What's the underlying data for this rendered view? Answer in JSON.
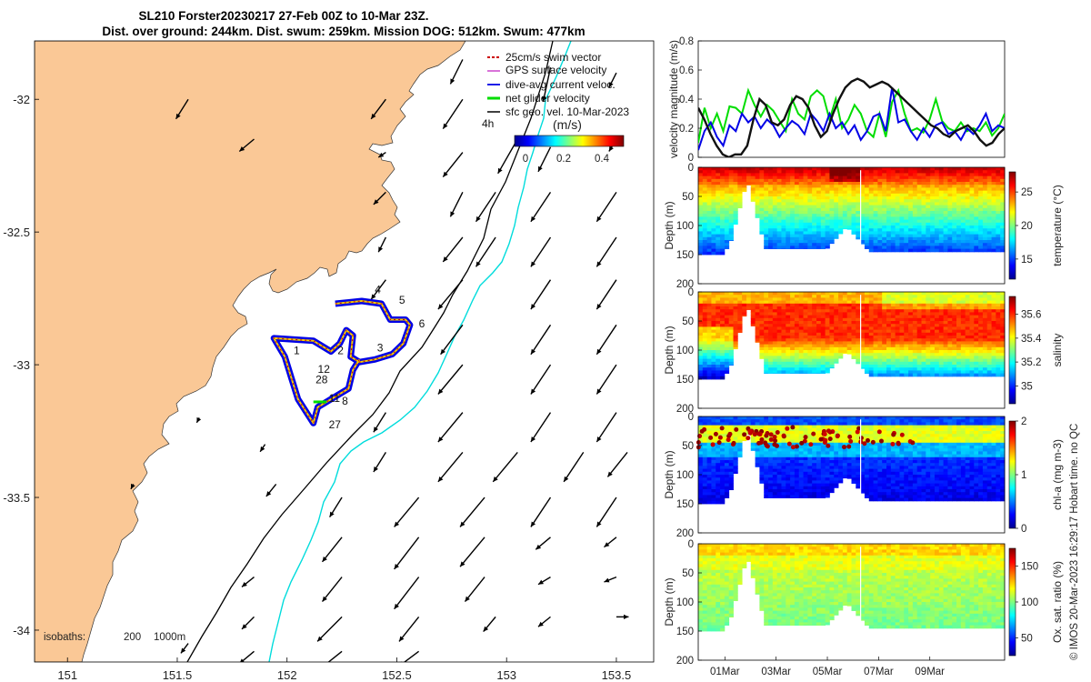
{
  "title_line1": "SL210 Forster20230217 27-Feb 00Z to 10-Mar 23Z.",
  "title_line2": "Dist. over ground: 244km. Dist. swum: 259km. Mission DOG: 512km. Swum: 477km",
  "credit": "© IMOS 20-Mar-2023 16:29:17 Hobart time. no QC",
  "colors": {
    "land": "#fac896",
    "isobath200": "#000000",
    "isobath1000": "#00dcdc",
    "track": "#0000e6",
    "swim": "#cc0000",
    "net": "#00dd00"
  },
  "chart_data": [
    {
      "type": "scatter",
      "name": "map",
      "xlim": [
        150.85,
        153.67
      ],
      "ylim": [
        -34.12,
        -31.78
      ],
      "x_ticks": [
        "151",
        "151.5",
        "152",
        "152.5",
        "153",
        "153.5"
      ],
      "y_ticks": [
        "-32",
        "-32.5",
        "-33",
        "-33.5",
        "-34"
      ],
      "legend": {
        "placement": "top-right",
        "items": [
          "25cm/s swim vector",
          "GPS surface velocity",
          "dive-avg current veloc.",
          "net glider velocity",
          "sfc geo. vel. 10-Mar-2023"
        ]
      },
      "scale_label": "4h",
      "colorbar": {
        "label": "(m/s)",
        "ticks": [
          "0",
          "0.2",
          "0.4"
        ],
        "range": [
          0,
          0.5
        ]
      },
      "isobath_label": "isobaths:",
      "isobath_values": [
        "200",
        "1000m"
      ],
      "waypoints": [
        {
          "label": "1",
          "lon": 152.03,
          "lat": -32.96
        },
        {
          "label": "2",
          "lon": 152.23,
          "lat": -32.96
        },
        {
          "label": "3",
          "lon": 152.41,
          "lat": -32.95
        },
        {
          "label": "4",
          "lon": 152.4,
          "lat": -32.73
        },
        {
          "label": "5",
          "lon": 152.51,
          "lat": -32.77
        },
        {
          "label": "6",
          "lon": 152.6,
          "lat": -32.86
        },
        {
          "label": "12",
          "lon": 152.14,
          "lat": -33.03
        },
        {
          "label": "28",
          "lon": 152.13,
          "lat": -33.07
        },
        {
          "label": "11",
          "lon": 152.19,
          "lat": -33.14
        },
        {
          "label": "8",
          "lon": 152.25,
          "lat": -33.15
        },
        {
          "label": "27",
          "lon": 152.19,
          "lat": -33.24
        }
      ],
      "track_lonlat": [
        [
          152.22,
          -32.77
        ],
        [
          152.34,
          -32.76
        ],
        [
          152.43,
          -32.77
        ],
        [
          152.47,
          -32.83
        ],
        [
          152.54,
          -32.83
        ],
        [
          152.56,
          -32.85
        ],
        [
          152.53,
          -32.92
        ],
        [
          152.48,
          -32.96
        ],
        [
          152.4,
          -32.98
        ],
        [
          152.33,
          -32.99
        ],
        [
          152.29,
          -32.97
        ],
        [
          152.3,
          -32.89
        ],
        [
          152.27,
          -32.87
        ],
        [
          152.24,
          -32.92
        ],
        [
          152.2,
          -32.95
        ],
        [
          152.12,
          -32.91
        ],
        [
          151.94,
          -32.9
        ],
        [
          151.99,
          -32.97
        ],
        [
          152.02,
          -33.05
        ],
        [
          152.05,
          -33.13
        ],
        [
          152.12,
          -33.22
        ],
        [
          152.14,
          -33.16
        ],
        [
          152.28,
          -33.09
        ],
        [
          152.3,
          -33.02
        ],
        [
          152.33,
          -32.98
        ]
      ],
      "surface_vectors": [
        {
          "lon": 151.55,
          "lat": -32.0,
          "u": -0.05,
          "v": -0.08
        },
        {
          "lon": 151.85,
          "lat": -32.15,
          "u": -0.06,
          "v": -0.05
        },
        {
          "lon": 152.8,
          "lat": -31.85,
          "u": -0.05,
          "v": -0.1
        },
        {
          "lon": 153.2,
          "lat": -31.88,
          "u": -0.03,
          "v": -0.14
        },
        {
          "lon": 153.5,
          "lat": -31.9,
          "u": -0.03,
          "v": -0.06
        },
        {
          "lon": 152.45,
          "lat": -32.0,
          "u": -0.06,
          "v": -0.08
        },
        {
          "lon": 152.8,
          "lat": -32.0,
          "u": -0.08,
          "v": -0.12
        },
        {
          "lon": 152.45,
          "lat": -32.2,
          "u": -0.03,
          "v": -0.02
        },
        {
          "lon": 152.8,
          "lat": -32.2,
          "u": -0.08,
          "v": -0.1
        },
        {
          "lon": 153.05,
          "lat": -32.15,
          "u": -0.08,
          "v": -0.14
        },
        {
          "lon": 153.2,
          "lat": -32.18,
          "u": -0.05,
          "v": -0.1
        },
        {
          "lon": 153.5,
          "lat": -32.15,
          "u": -0.03,
          "v": -0.05
        },
        {
          "lon": 152.45,
          "lat": -32.35,
          "u": -0.05,
          "v": -0.05
        },
        {
          "lon": 152.8,
          "lat": -32.35,
          "u": -0.05,
          "v": -0.1
        },
        {
          "lon": 152.95,
          "lat": -32.35,
          "u": -0.08,
          "v": -0.12
        },
        {
          "lon": 153.2,
          "lat": -32.35,
          "u": -0.08,
          "v": -0.12
        },
        {
          "lon": 153.5,
          "lat": -32.35,
          "u": -0.08,
          "v": -0.12
        },
        {
          "lon": 152.45,
          "lat": -32.52,
          "u": -0.03,
          "v": -0.06
        },
        {
          "lon": 152.8,
          "lat": -32.52,
          "u": -0.08,
          "v": -0.1
        },
        {
          "lon": 152.95,
          "lat": -32.52,
          "u": -0.08,
          "v": -0.12
        },
        {
          "lon": 153.2,
          "lat": -32.52,
          "u": -0.08,
          "v": -0.12
        },
        {
          "lon": 153.5,
          "lat": -32.52,
          "u": -0.08,
          "v": -0.12
        },
        {
          "lon": 152.45,
          "lat": -32.68,
          "u": -0.06,
          "v": -0.08
        },
        {
          "lon": 152.8,
          "lat": -32.68,
          "u": -0.1,
          "v": -0.12
        },
        {
          "lon": 153.2,
          "lat": -32.68,
          "u": -0.08,
          "v": -0.12
        },
        {
          "lon": 153.5,
          "lat": -32.68,
          "u": -0.08,
          "v": -0.12
        },
        {
          "lon": 152.8,
          "lat": -32.85,
          "u": -0.09,
          "v": -0.12
        },
        {
          "lon": 153.2,
          "lat": -32.85,
          "u": -0.08,
          "v": -0.12
        },
        {
          "lon": 153.5,
          "lat": -32.85,
          "u": -0.08,
          "v": -0.12
        },
        {
          "lon": 152.8,
          "lat": -33.0,
          "u": -0.1,
          "v": -0.12
        },
        {
          "lon": 153.2,
          "lat": -33.0,
          "u": -0.08,
          "v": -0.12
        },
        {
          "lon": 153.5,
          "lat": -33.0,
          "u": -0.08,
          "v": -0.12
        },
        {
          "lon": 152.45,
          "lat": -33.18,
          "u": -0.05,
          "v": -0.08
        },
        {
          "lon": 152.8,
          "lat": -33.18,
          "u": -0.1,
          "v": -0.12
        },
        {
          "lon": 153.2,
          "lat": -33.18,
          "u": -0.08,
          "v": -0.12
        },
        {
          "lon": 153.5,
          "lat": -33.18,
          "u": -0.08,
          "v": -0.12
        },
        {
          "lon": 151.6,
          "lat": -33.2,
          "u": -0.01,
          "v": -0.02
        },
        {
          "lon": 151.9,
          "lat": -33.3,
          "u": -0.02,
          "v": -0.03
        },
        {
          "lon": 152.45,
          "lat": -33.33,
          "u": -0.05,
          "v": -0.08
        },
        {
          "lon": 152.8,
          "lat": -33.33,
          "u": -0.1,
          "v": -0.12
        },
        {
          "lon": 153.05,
          "lat": -33.33,
          "u": -0.1,
          "v": -0.12
        },
        {
          "lon": 153.35,
          "lat": -33.33,
          "u": -0.08,
          "v": -0.12
        },
        {
          "lon": 153.55,
          "lat": -33.33,
          "u": -0.08,
          "v": -0.1
        },
        {
          "lon": 151.3,
          "lat": -33.45,
          "u": -0.01,
          "v": -0.02
        },
        {
          "lon": 151.95,
          "lat": -33.45,
          "u": -0.04,
          "v": -0.05
        },
        {
          "lon": 152.25,
          "lat": -33.5,
          "u": -0.05,
          "v": -0.08
        },
        {
          "lon": 152.6,
          "lat": -33.5,
          "u": -0.1,
          "v": -0.12
        },
        {
          "lon": 152.9,
          "lat": -33.5,
          "u": -0.1,
          "v": -0.12
        },
        {
          "lon": 153.2,
          "lat": -33.5,
          "u": -0.08,
          "v": -0.12
        },
        {
          "lon": 153.5,
          "lat": -33.5,
          "u": -0.08,
          "v": -0.12
        },
        {
          "lon": 152.25,
          "lat": -33.65,
          "u": -0.08,
          "v": -0.1
        },
        {
          "lon": 152.6,
          "lat": -33.65,
          "u": -0.1,
          "v": -0.13
        },
        {
          "lon": 152.9,
          "lat": -33.65,
          "u": -0.1,
          "v": -0.12
        },
        {
          "lon": 153.2,
          "lat": -33.65,
          "u": -0.06,
          "v": -0.05
        },
        {
          "lon": 153.5,
          "lat": -33.65,
          "u": -0.05,
          "v": -0.04
        },
        {
          "lon": 151.85,
          "lat": -33.8,
          "u": -0.05,
          "v": -0.04
        },
        {
          "lon": 152.25,
          "lat": -33.8,
          "u": -0.08,
          "v": -0.1
        },
        {
          "lon": 152.6,
          "lat": -33.8,
          "u": -0.1,
          "v": -0.13
        },
        {
          "lon": 152.9,
          "lat": -33.8,
          "u": -0.08,
          "v": -0.1
        },
        {
          "lon": 153.2,
          "lat": -33.8,
          "u": -0.05,
          "v": -0.03
        },
        {
          "lon": 153.5,
          "lat": -33.8,
          "u": -0.05,
          "v": -0.02
        },
        {
          "lon": 151.85,
          "lat": -33.95,
          "u": -0.05,
          "v": -0.05
        },
        {
          "lon": 152.25,
          "lat": -33.95,
          "u": -0.1,
          "v": -0.1
        },
        {
          "lon": 152.6,
          "lat": -33.95,
          "u": -0.08,
          "v": -0.1
        },
        {
          "lon": 152.95,
          "lat": -33.95,
          "u": -0.05,
          "v": -0.06
        },
        {
          "lon": 153.2,
          "lat": -33.95,
          "u": -0.05,
          "v": -0.04
        },
        {
          "lon": 153.5,
          "lat": -33.95,
          "u": 0.05,
          "v": 0.0
        },
        {
          "lon": 151.55,
          "lat": -34.05,
          "u": -0.03,
          "v": -0.04
        },
        {
          "lon": 151.85,
          "lat": -34.08,
          "u": -0.06,
          "v": -0.05
        },
        {
          "lon": 152.25,
          "lat": -34.08,
          "u": -0.1,
          "v": -0.08
        },
        {
          "lon": 152.6,
          "lat": -34.08,
          "u": -0.08,
          "v": -0.06
        }
      ]
    },
    {
      "type": "line",
      "name": "velocity",
      "ylabel": "velocity magnitude (m/s)",
      "ylim": [
        0,
        0.8
      ],
      "y_ticks": [
        "0",
        "0.2",
        "0.4",
        "0.6",
        "0.8"
      ],
      "xlim_days": [
        0,
        11.96
      ],
      "series": [
        {
          "color": "#00dd00",
          "values": [
            0.1,
            0.34,
            0.2,
            0.3,
            0.18,
            0.35,
            0.34,
            0.3,
            0.46,
            0.36,
            0.28,
            0.36,
            0.32,
            0.25,
            0.18,
            0.4,
            0.3,
            0.26,
            0.42,
            0.46,
            0.42,
            0.26,
            0.4,
            0.2,
            0.26,
            0.36,
            0.3,
            0.18,
            0.14,
            0.3,
            0.14,
            0.38,
            0.46,
            0.3,
            0.18,
            0.2,
            0.17,
            0.26,
            0.4,
            0.25,
            0.2,
            0.18,
            0.24,
            0.18,
            0.2,
            0.18,
            0.24,
            0.15,
            0.2,
            0.3
          ]
        },
        {
          "color": "#0000e6",
          "values": [
            0.05,
            0.18,
            0.24,
            0.14,
            0.08,
            0.22,
            0.18,
            0.3,
            0.24,
            0.28,
            0.2,
            0.26,
            0.22,
            0.14,
            0.2,
            0.25,
            0.22,
            0.16,
            0.3,
            0.25,
            0.18,
            0.3,
            0.2,
            0.24,
            0.16,
            0.22,
            0.12,
            0.18,
            0.28,
            0.3,
            0.18,
            0.48,
            0.24,
            0.26,
            0.18,
            0.12,
            0.2,
            0.14,
            0.22,
            0.24,
            0.16,
            0.18,
            0.12,
            0.2,
            0.16,
            0.22,
            0.3,
            0.18,
            0.22,
            0.2
          ]
        },
        {
          "color": "#111111",
          "values": [
            0.34,
            0.26,
            0.16,
            0.08,
            0.02,
            0.0,
            0.02,
            0.02,
            0.08,
            0.26,
            0.4,
            0.36,
            0.24,
            0.22,
            0.26,
            0.36,
            0.42,
            0.4,
            0.34,
            0.22,
            0.14,
            0.18,
            0.3,
            0.4,
            0.48,
            0.52,
            0.54,
            0.52,
            0.48,
            0.5,
            0.52,
            0.5,
            0.46,
            0.42,
            0.38,
            0.34,
            0.3,
            0.26,
            0.22,
            0.2,
            0.16,
            0.14,
            0.18,
            0.2,
            0.22,
            0.18,
            0.12,
            0.08,
            0.1,
            0.16,
            0.2
          ]
        }
      ]
    },
    {
      "type": "heatmap",
      "name": "temperature",
      "ylabel": "Depth (m)",
      "ylim": [
        0,
        200
      ],
      "y_ticks": [
        "0",
        "50",
        "100",
        "150",
        "200"
      ],
      "colorbar_label": "temperature (°C)",
      "colorbar_range": [
        12,
        28
      ],
      "colorbar_ticks": [
        "15",
        "20",
        "25"
      ]
    },
    {
      "type": "heatmap",
      "name": "salinity",
      "ylabel": "Depth (m)",
      "ylim": [
        0,
        200
      ],
      "y_ticks": [
        "0",
        "50",
        "100",
        "150",
        "200"
      ],
      "colorbar_label": "salinity",
      "colorbar_range": [
        34.85,
        35.75
      ],
      "colorbar_ticks": [
        "35",
        "35.2",
        "35.4",
        "35.6"
      ]
    },
    {
      "type": "heatmap",
      "name": "chla",
      "ylabel": "Depth (m)",
      "ylim": [
        0,
        200
      ],
      "y_ticks": [
        "0",
        "50",
        "100",
        "150",
        "200"
      ],
      "colorbar_label": "chl-a (mg m-3)",
      "colorbar_range": [
        0,
        2
      ],
      "colorbar_ticks": [
        "0",
        "1",
        "2"
      ]
    },
    {
      "type": "heatmap",
      "name": "oxygen",
      "ylabel": "Depth (m)",
      "ylim": [
        0,
        200
      ],
      "y_ticks": [
        "0",
        "50",
        "100",
        "150",
        "200"
      ],
      "colorbar_label": "Ox. sat. ratio (%)",
      "colorbar_range": [
        25,
        175
      ],
      "colorbar_ticks": [
        "50",
        "100",
        "150"
      ],
      "x_ticks": [
        "01Mar",
        "03Mar",
        "05Mar",
        "07Mar",
        "09Mar"
      ]
    }
  ]
}
